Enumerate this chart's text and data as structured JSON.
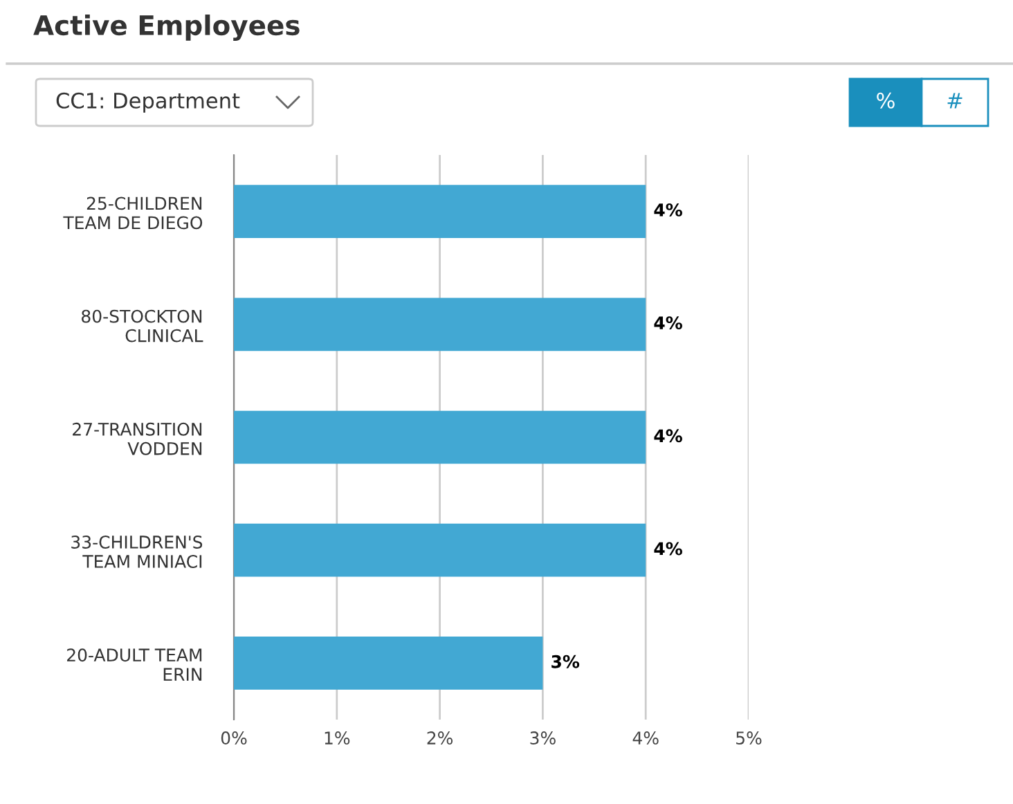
{
  "chart_data": {
    "type": "bar",
    "orientation": "horizontal",
    "title": "Active Employees",
    "categories": [
      "25-CHILDREN\nTEAM DE DIEGO",
      "80-STOCKTON\nCLINICAL",
      "27-TRANSITION\nVODDEN",
      "33-CHILDREN'S\nTEAM MINIACI",
      "20-ADULT TEAM\nERIN"
    ],
    "values": [
      4,
      4,
      4,
      4,
      3
    ],
    "value_labels": [
      "4%",
      "4%",
      "4%",
      "4%",
      "3%"
    ],
    "color": "#42a8d3",
    "xlim": [
      0,
      5
    ],
    "xticks": [
      {
        "value": 0,
        "label": "0%"
      },
      {
        "value": 1,
        "label": "1%"
      },
      {
        "value": 2,
        "label": "2%"
      },
      {
        "value": 3,
        "label": "3%"
      },
      {
        "value": 4,
        "label": "4%"
      },
      {
        "value": 5,
        "label": "5%"
      }
    ],
    "grid": "x",
    "legend": false,
    "annotations": [
      "CC1: Department",
      "%",
      "#"
    ]
  }
}
